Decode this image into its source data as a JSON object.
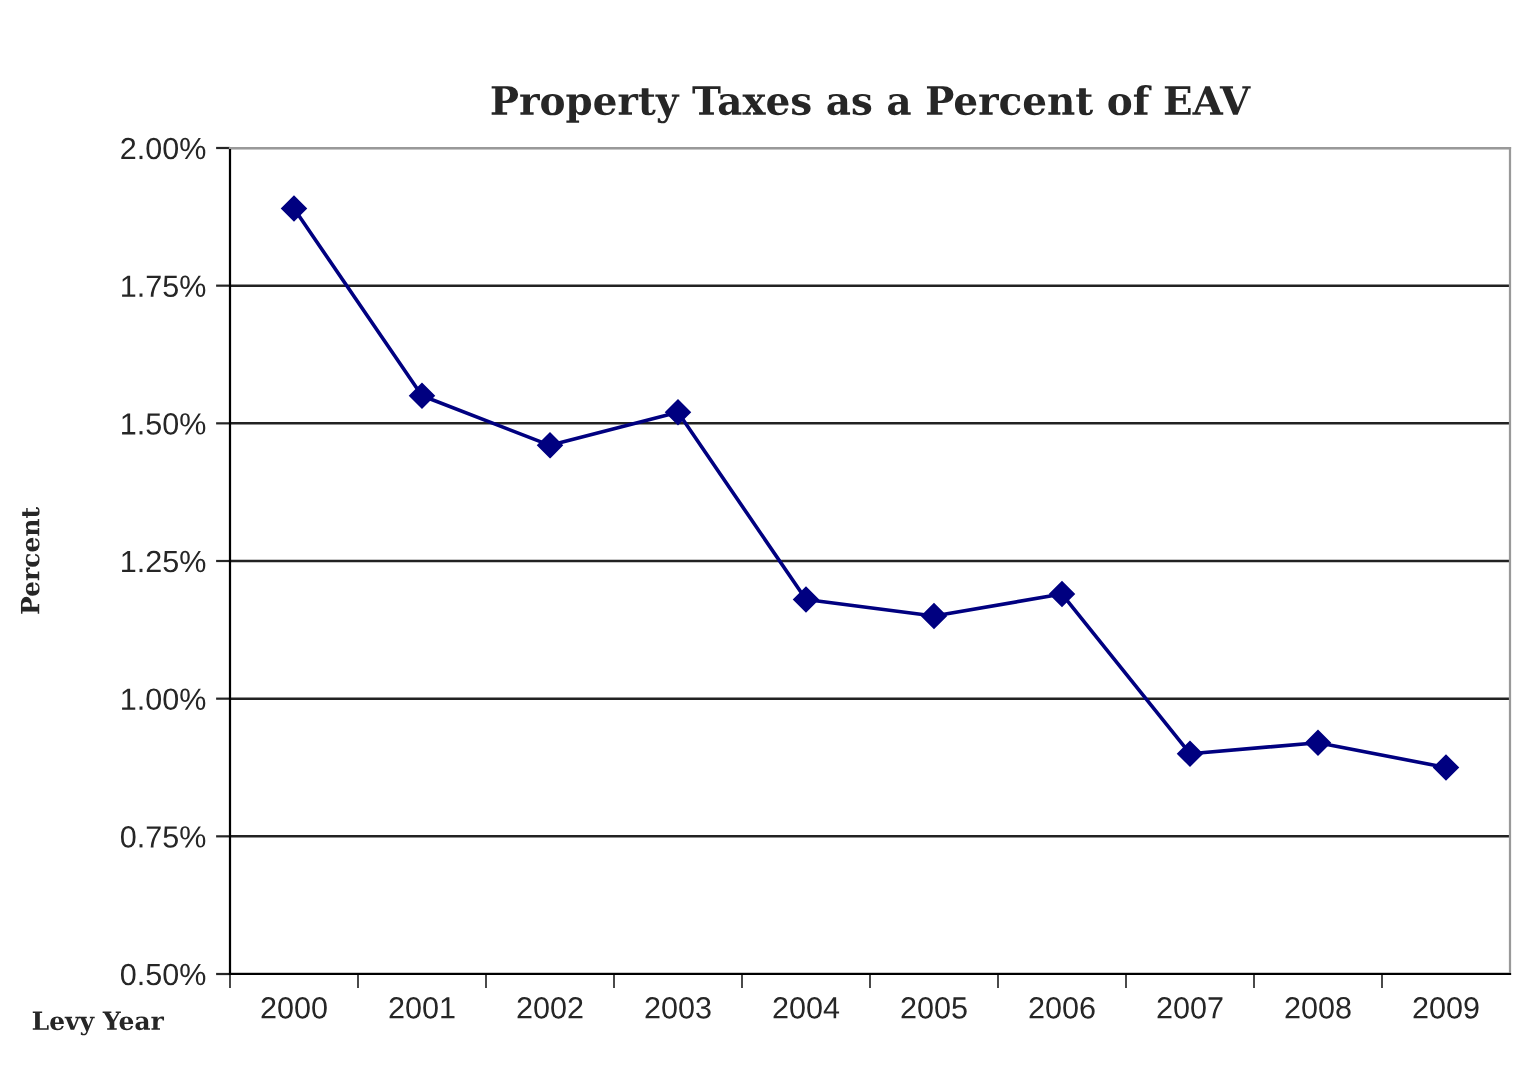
{
  "chart_data": {
    "type": "line",
    "title": "Property Taxes as a Percent of EAV",
    "xlabel": "Levy Year",
    "ylabel": "Percent",
    "categories": [
      "2000",
      "2001",
      "2002",
      "2003",
      "2004",
      "2005",
      "2006",
      "2007",
      "2008",
      "2009"
    ],
    "series": [
      {
        "color": "#000080",
        "values": [
          1.89,
          1.55,
          1.46,
          1.52,
          1.18,
          1.15,
          1.19,
          0.9,
          0.92,
          0.875
        ]
      }
    ],
    "ylim": [
      0.5,
      2.0
    ],
    "yticks": [
      {
        "value": 0.5,
        "label": "0.50%"
      },
      {
        "value": 0.75,
        "label": "0.75%"
      },
      {
        "value": 1.0,
        "label": "1.00%"
      },
      {
        "value": 1.25,
        "label": "1.25%"
      },
      {
        "value": 1.5,
        "label": "1.50%"
      },
      {
        "value": 1.75,
        "label": "1.75%"
      },
      {
        "value": 2.0,
        "label": "2.00%"
      }
    ],
    "grid": "y",
    "marker": "diamond",
    "line_style": "solid"
  }
}
